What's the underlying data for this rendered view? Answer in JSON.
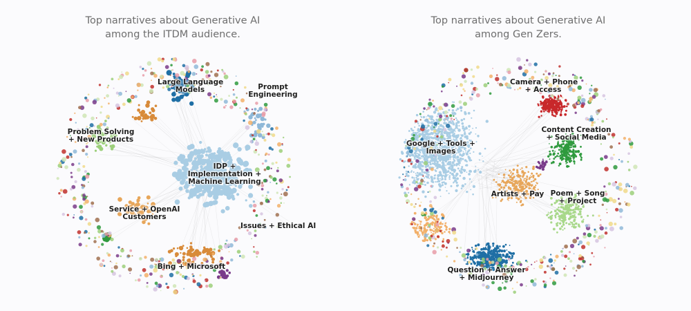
{
  "left_panel": {
    "title_line1": "Top narratives about Generative AI",
    "title_line2": "among the ITDM audience.",
    "clusters": [
      {
        "lines": [
          "Large Language",
          "Models"
        ],
        "color": "#1f6fa5"
      },
      {
        "lines": [
          "Prompt",
          "Engineering"
        ],
        "color": "#8fb8d8"
      },
      {
        "lines": [
          "Problem Solving",
          "+ New Products"
        ],
        "color": "#9ccf7a"
      },
      {
        "lines": [
          "IDP +",
          "Implementation +",
          "Machine Learning"
        ],
        "color": "#a9cde4"
      },
      {
        "lines": [
          "Service + OpenAI",
          "Customers"
        ],
        "color": "#e7a65a"
      },
      {
        "lines": [
          "Issues + Ethical AI"
        ],
        "color": "#c0302d"
      },
      {
        "lines": [
          "Bing + Microsoft"
        ],
        "color": "#d88b3a"
      }
    ]
  },
  "right_panel": {
    "title_line1": "Top narratives about Generative AI",
    "title_line2": "among Gen Zers.",
    "clusters": [
      {
        "lines": [
          "Camera + Phone",
          "+ Access"
        ],
        "color": "#c8282b"
      },
      {
        "lines": [
          "Google + Tools +",
          "Images"
        ],
        "color": "#a9cde4"
      },
      {
        "lines": [
          "Content Creation",
          "+ Social Media"
        ],
        "color": "#2f9a3e"
      },
      {
        "lines": [
          "Artists + Pay"
        ],
        "color": "#e7a65a"
      },
      {
        "lines": [
          "Poem + Song",
          "+ Project"
        ],
        "color": "#a8d88a"
      },
      {
        "lines": [
          "Question + Answer",
          "+ Midjourney"
        ],
        "color": "#1f6fa5"
      }
    ]
  }
}
